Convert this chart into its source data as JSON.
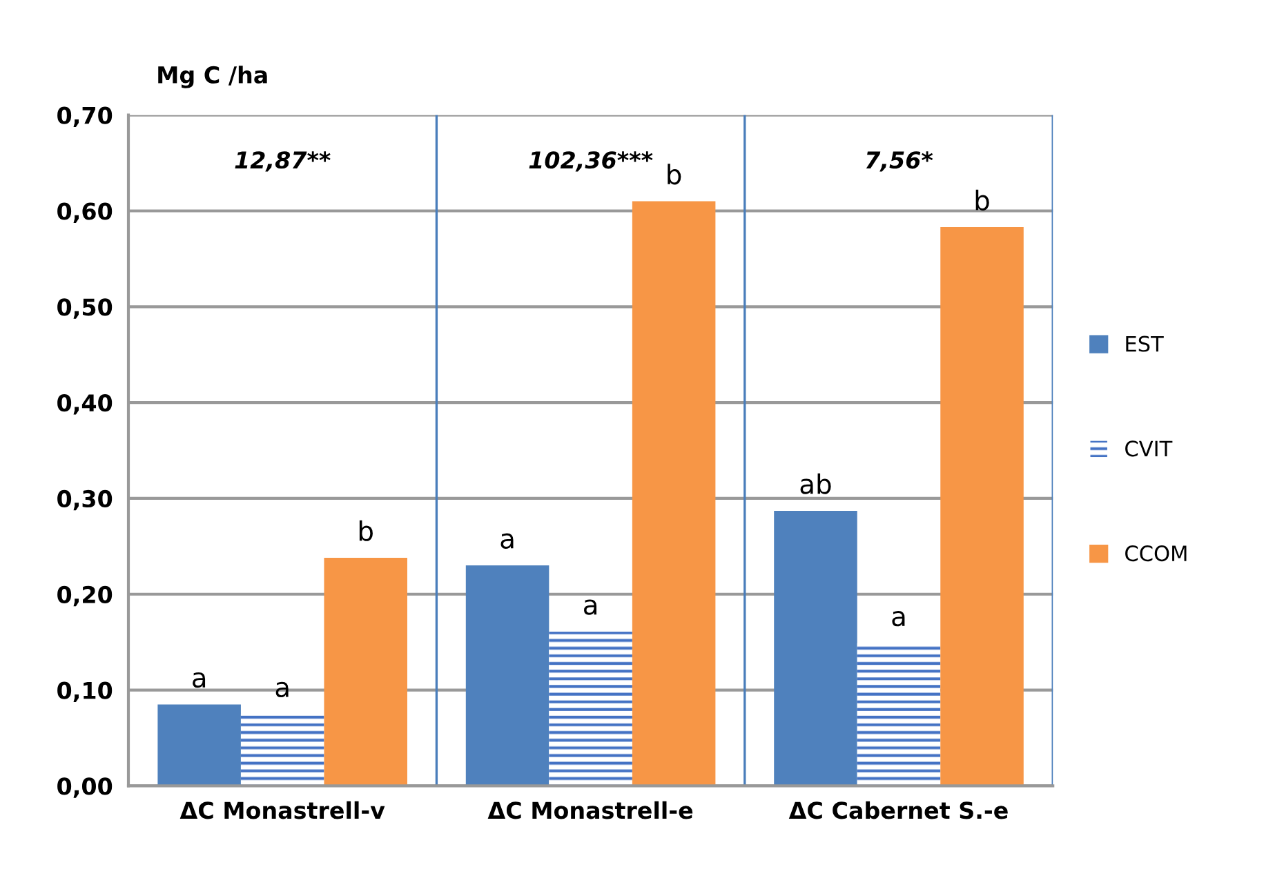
{
  "chart_data": {
    "type": "bar",
    "ylabel": "Mg C /ha",
    "categories": [
      "ΔC Monastrell-v",
      "ΔC Monastrell-e",
      "ΔC Cabernet S.-e"
    ],
    "series": [
      {
        "name": "EST",
        "color": "#4f81bd",
        "values": [
          0.085,
          0.23,
          0.287
        ],
        "value_labels": [
          "a",
          "a",
          "ab"
        ]
      },
      {
        "name": "CVIT",
        "color": "#4472c4",
        "values": [
          0.075,
          0.161,
          0.149
        ],
        "value_labels": [
          "a",
          "a",
          "a"
        ]
      },
      {
        "name": "CCOM",
        "color": "#f79646",
        "values": [
          0.238,
          0.61,
          0.583
        ],
        "value_labels": [
          "b",
          "b",
          "b"
        ]
      }
    ],
    "ylim": [
      0,
      0.7
    ],
    "yticks": [
      {
        "value": 0,
        "label": "0,00"
      },
      {
        "value": 0.1,
        "label": "0,10"
      },
      {
        "value": 0.2,
        "label": "0,20"
      },
      {
        "value": 0.3,
        "label": "0,30"
      },
      {
        "value": 0.4,
        "label": "0,40"
      },
      {
        "value": 0.5,
        "label": "0,50"
      },
      {
        "value": 0.6,
        "label": "0,60"
      },
      {
        "value": 0.7,
        "label": "0,70"
      }
    ],
    "grid": "y",
    "legend": "right",
    "annotations": [
      "12,87**",
      "102,36***",
      "7,56*"
    ]
  }
}
